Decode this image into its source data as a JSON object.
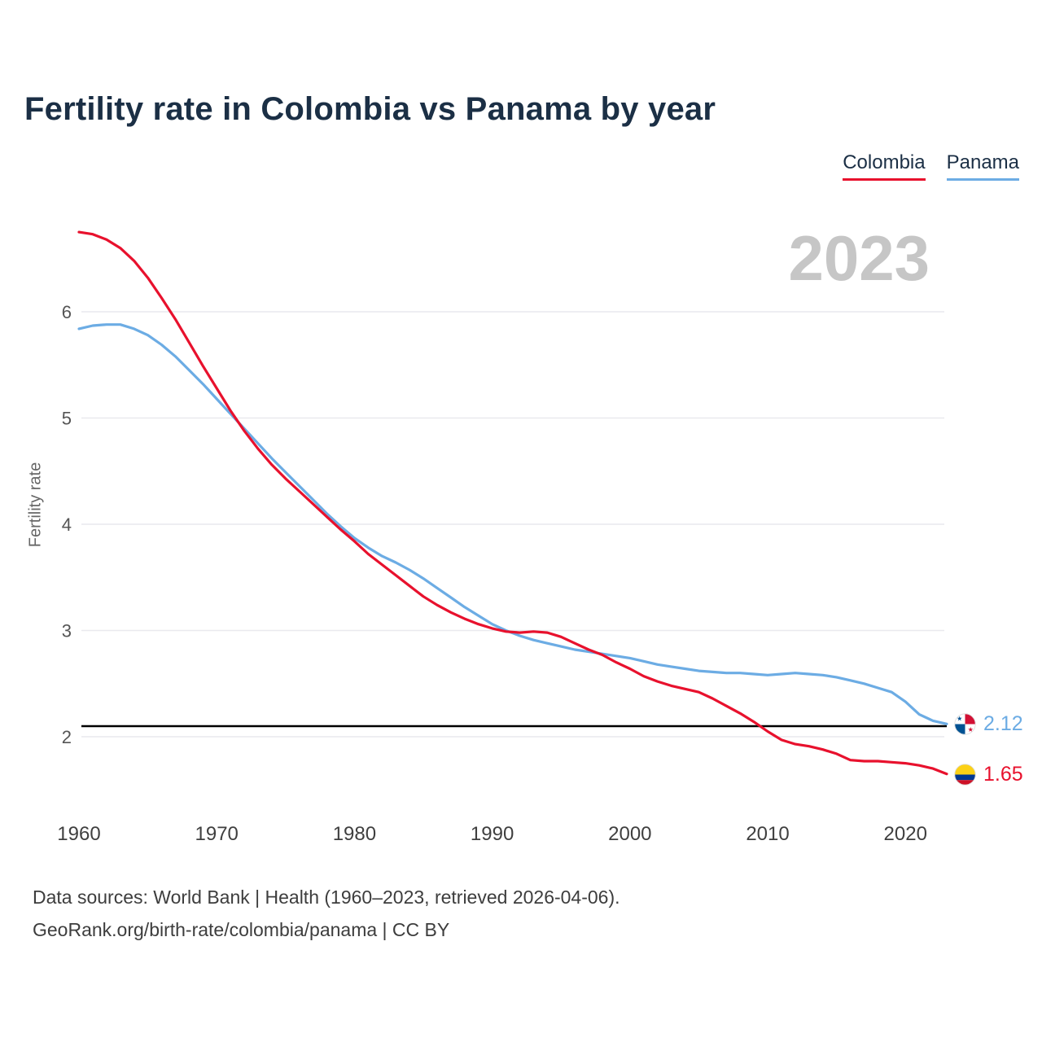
{
  "header": {
    "title": "Fertility rate in Colombia vs Panama by year"
  },
  "legend": [
    {
      "label": "Colombia",
      "color": "#e8112d"
    },
    {
      "label": "Panama",
      "color": "#6cace4"
    }
  ],
  "watermark": "2023",
  "footer": {
    "line1": "Data sources: World Bank | Health (1960–2023, retrieved 2026-04-06).",
    "line2": "GeoRank.org/birth-rate/colombia/panama | CC BY"
  },
  "chart_data": {
    "type": "line",
    "title": "Fertility rate in Colombia vs Panama by year",
    "xlabel": "",
    "ylabel": "Fertility rate",
    "legend_position": "top-right",
    "grid": "horizontal",
    "xlim": [
      1960,
      2023
    ],
    "ylim": [
      1.5,
      6.9
    ],
    "x_ticks": [
      1960,
      1970,
      1980,
      1990,
      2000,
      2010,
      2020
    ],
    "y_ticks": [
      2,
      3,
      4,
      5,
      6
    ],
    "reference_line": {
      "value": 2.1,
      "color": "#000000"
    },
    "years": [
      1960,
      1961,
      1962,
      1963,
      1964,
      1965,
      1966,
      1967,
      1968,
      1969,
      1970,
      1971,
      1972,
      1973,
      1974,
      1975,
      1976,
      1977,
      1978,
      1979,
      1980,
      1981,
      1982,
      1983,
      1984,
      1985,
      1986,
      1987,
      1988,
      1989,
      1990,
      1991,
      1992,
      1993,
      1994,
      1995,
      1996,
      1997,
      1998,
      1999,
      2000,
      2001,
      2002,
      2003,
      2004,
      2005,
      2006,
      2007,
      2008,
      2009,
      2010,
      2011,
      2012,
      2013,
      2014,
      2015,
      2016,
      2017,
      2018,
      2019,
      2020,
      2021,
      2022,
      2023
    ],
    "series": [
      {
        "name": "Colombia",
        "color": "#e8112d",
        "end_value": 1.65,
        "end_label": "1.65",
        "values": [
          6.75,
          6.73,
          6.68,
          6.6,
          6.48,
          6.32,
          6.13,
          5.93,
          5.71,
          5.49,
          5.28,
          5.07,
          4.88,
          4.71,
          4.56,
          4.43,
          4.31,
          4.19,
          4.07,
          3.95,
          3.84,
          3.72,
          3.62,
          3.52,
          3.42,
          3.32,
          3.24,
          3.17,
          3.11,
          3.06,
          3.02,
          2.99,
          2.98,
          2.99,
          2.98,
          2.94,
          2.88,
          2.82,
          2.77,
          2.7,
          2.64,
          2.57,
          2.52,
          2.48,
          2.45,
          2.42,
          2.36,
          2.29,
          2.22,
          2.14,
          2.05,
          1.97,
          1.93,
          1.91,
          1.88,
          1.84,
          1.78,
          1.77,
          1.77,
          1.76,
          1.75,
          1.73,
          1.7,
          1.65
        ]
      },
      {
        "name": "Panama",
        "color": "#6cace4",
        "end_value": 2.12,
        "end_label": "2.12",
        "values": [
          5.84,
          5.87,
          5.88,
          5.88,
          5.84,
          5.78,
          5.69,
          5.58,
          5.45,
          5.32,
          5.18,
          5.04,
          4.9,
          4.76,
          4.62,
          4.49,
          4.36,
          4.23,
          4.1,
          3.98,
          3.87,
          3.78,
          3.7,
          3.64,
          3.57,
          3.49,
          3.4,
          3.31,
          3.22,
          3.14,
          3.06,
          3.0,
          2.95,
          2.91,
          2.88,
          2.85,
          2.82,
          2.8,
          2.78,
          2.76,
          2.74,
          2.71,
          2.68,
          2.66,
          2.64,
          2.62,
          2.61,
          2.6,
          2.6,
          2.59,
          2.58,
          2.59,
          2.6,
          2.59,
          2.58,
          2.56,
          2.53,
          2.5,
          2.46,
          2.42,
          2.33,
          2.21,
          2.15,
          2.12
        ]
      }
    ]
  }
}
